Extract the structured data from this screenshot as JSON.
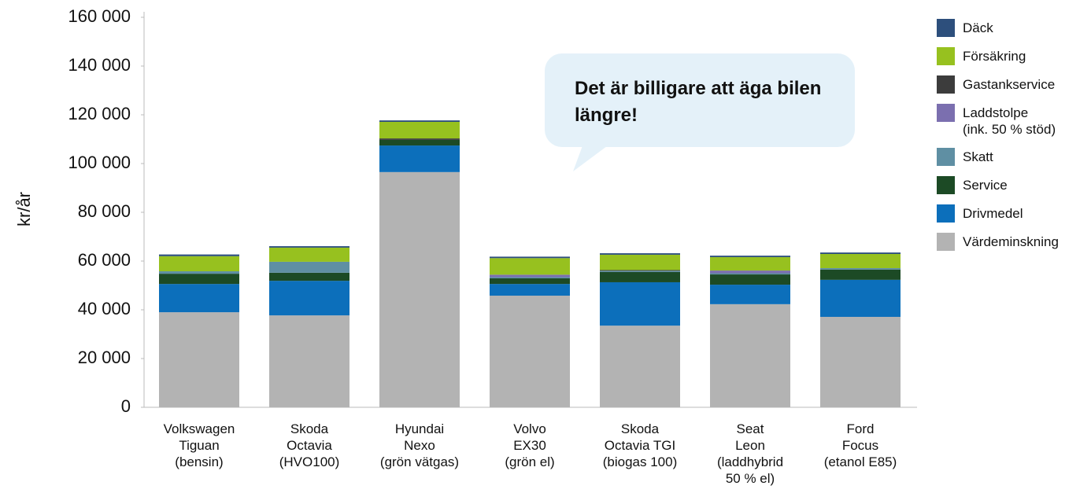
{
  "chart_data": {
    "type": "stacked_bar",
    "ylabel": "kr/år",
    "annotation": "Det är billigare att äga bilen längre!",
    "categories": [
      "Volkswagen\nTiguan\n(bensin)",
      "Skoda\nOctavia\n(HVO100)",
      "Hyundai\nNexo\n(grön vätgas)",
      "Volvo\nEX30\n(grön el)",
      "Skoda\nOctavia TGI\n(biogas 100)",
      "Seat\nLeon\n(laddhybrid\n50 % el)",
      "Ford\nFocus\n(etanol E85)"
    ],
    "series": [
      {
        "name": "Däck",
        "color": "#2d4f7c",
        "values": [
          700,
          600,
          600,
          600,
          600,
          600,
          600
        ]
      },
      {
        "name": "Försäkring",
        "color": "#97c11f",
        "values": [
          6200,
          5800,
          6800,
          6800,
          6300,
          5500,
          5800
        ]
      },
      {
        "name": "Gastankservice",
        "color": "#3c3c3c",
        "values": [
          0,
          0,
          600,
          0,
          300,
          0,
          0
        ]
      },
      {
        "name": "Laddstolpe\n(ink. 50 % stöd)",
        "color": "#7b6faf",
        "values": [
          0,
          0,
          0,
          1000,
          0,
          1100,
          0
        ]
      },
      {
        "name": "Skatt",
        "color": "#5f8fa3",
        "values": [
          1000,
          4500,
          0,
          500,
          500,
          500,
          600
        ]
      },
      {
        "name": "Service",
        "color": "#1c4a25",
        "values": [
          4200,
          3300,
          2300,
          2300,
          4200,
          4200,
          4200
        ]
      },
      {
        "name": "Drivmedel",
        "color": "#0c6fbb",
        "values": [
          11600,
          14200,
          10900,
          4800,
          17800,
          8000,
          15200
        ]
      },
      {
        "name": "Värdeminskning",
        "color": "#b3b3b3",
        "values": [
          39000,
          37700,
          96500,
          45800,
          33500,
          42300,
          37100
        ]
      }
    ],
    "ylim": [
      0,
      160000
    ],
    "yticks": [
      0,
      {
        "value": 20000,
        "label": "20 000"
      },
      {
        "value": 40000,
        "label": "40 000"
      },
      {
        "value": 60000,
        "label": "60 000"
      },
      {
        "value": 80000,
        "label": "80 000"
      },
      {
        "value": 100000,
        "label": "100 000"
      },
      {
        "value": 120000,
        "label": "120 000"
      },
      {
        "value": 140000,
        "label": "140 000"
      },
      {
        "value": 160000,
        "label": "160 000"
      }
    ],
    "legend": "right"
  }
}
